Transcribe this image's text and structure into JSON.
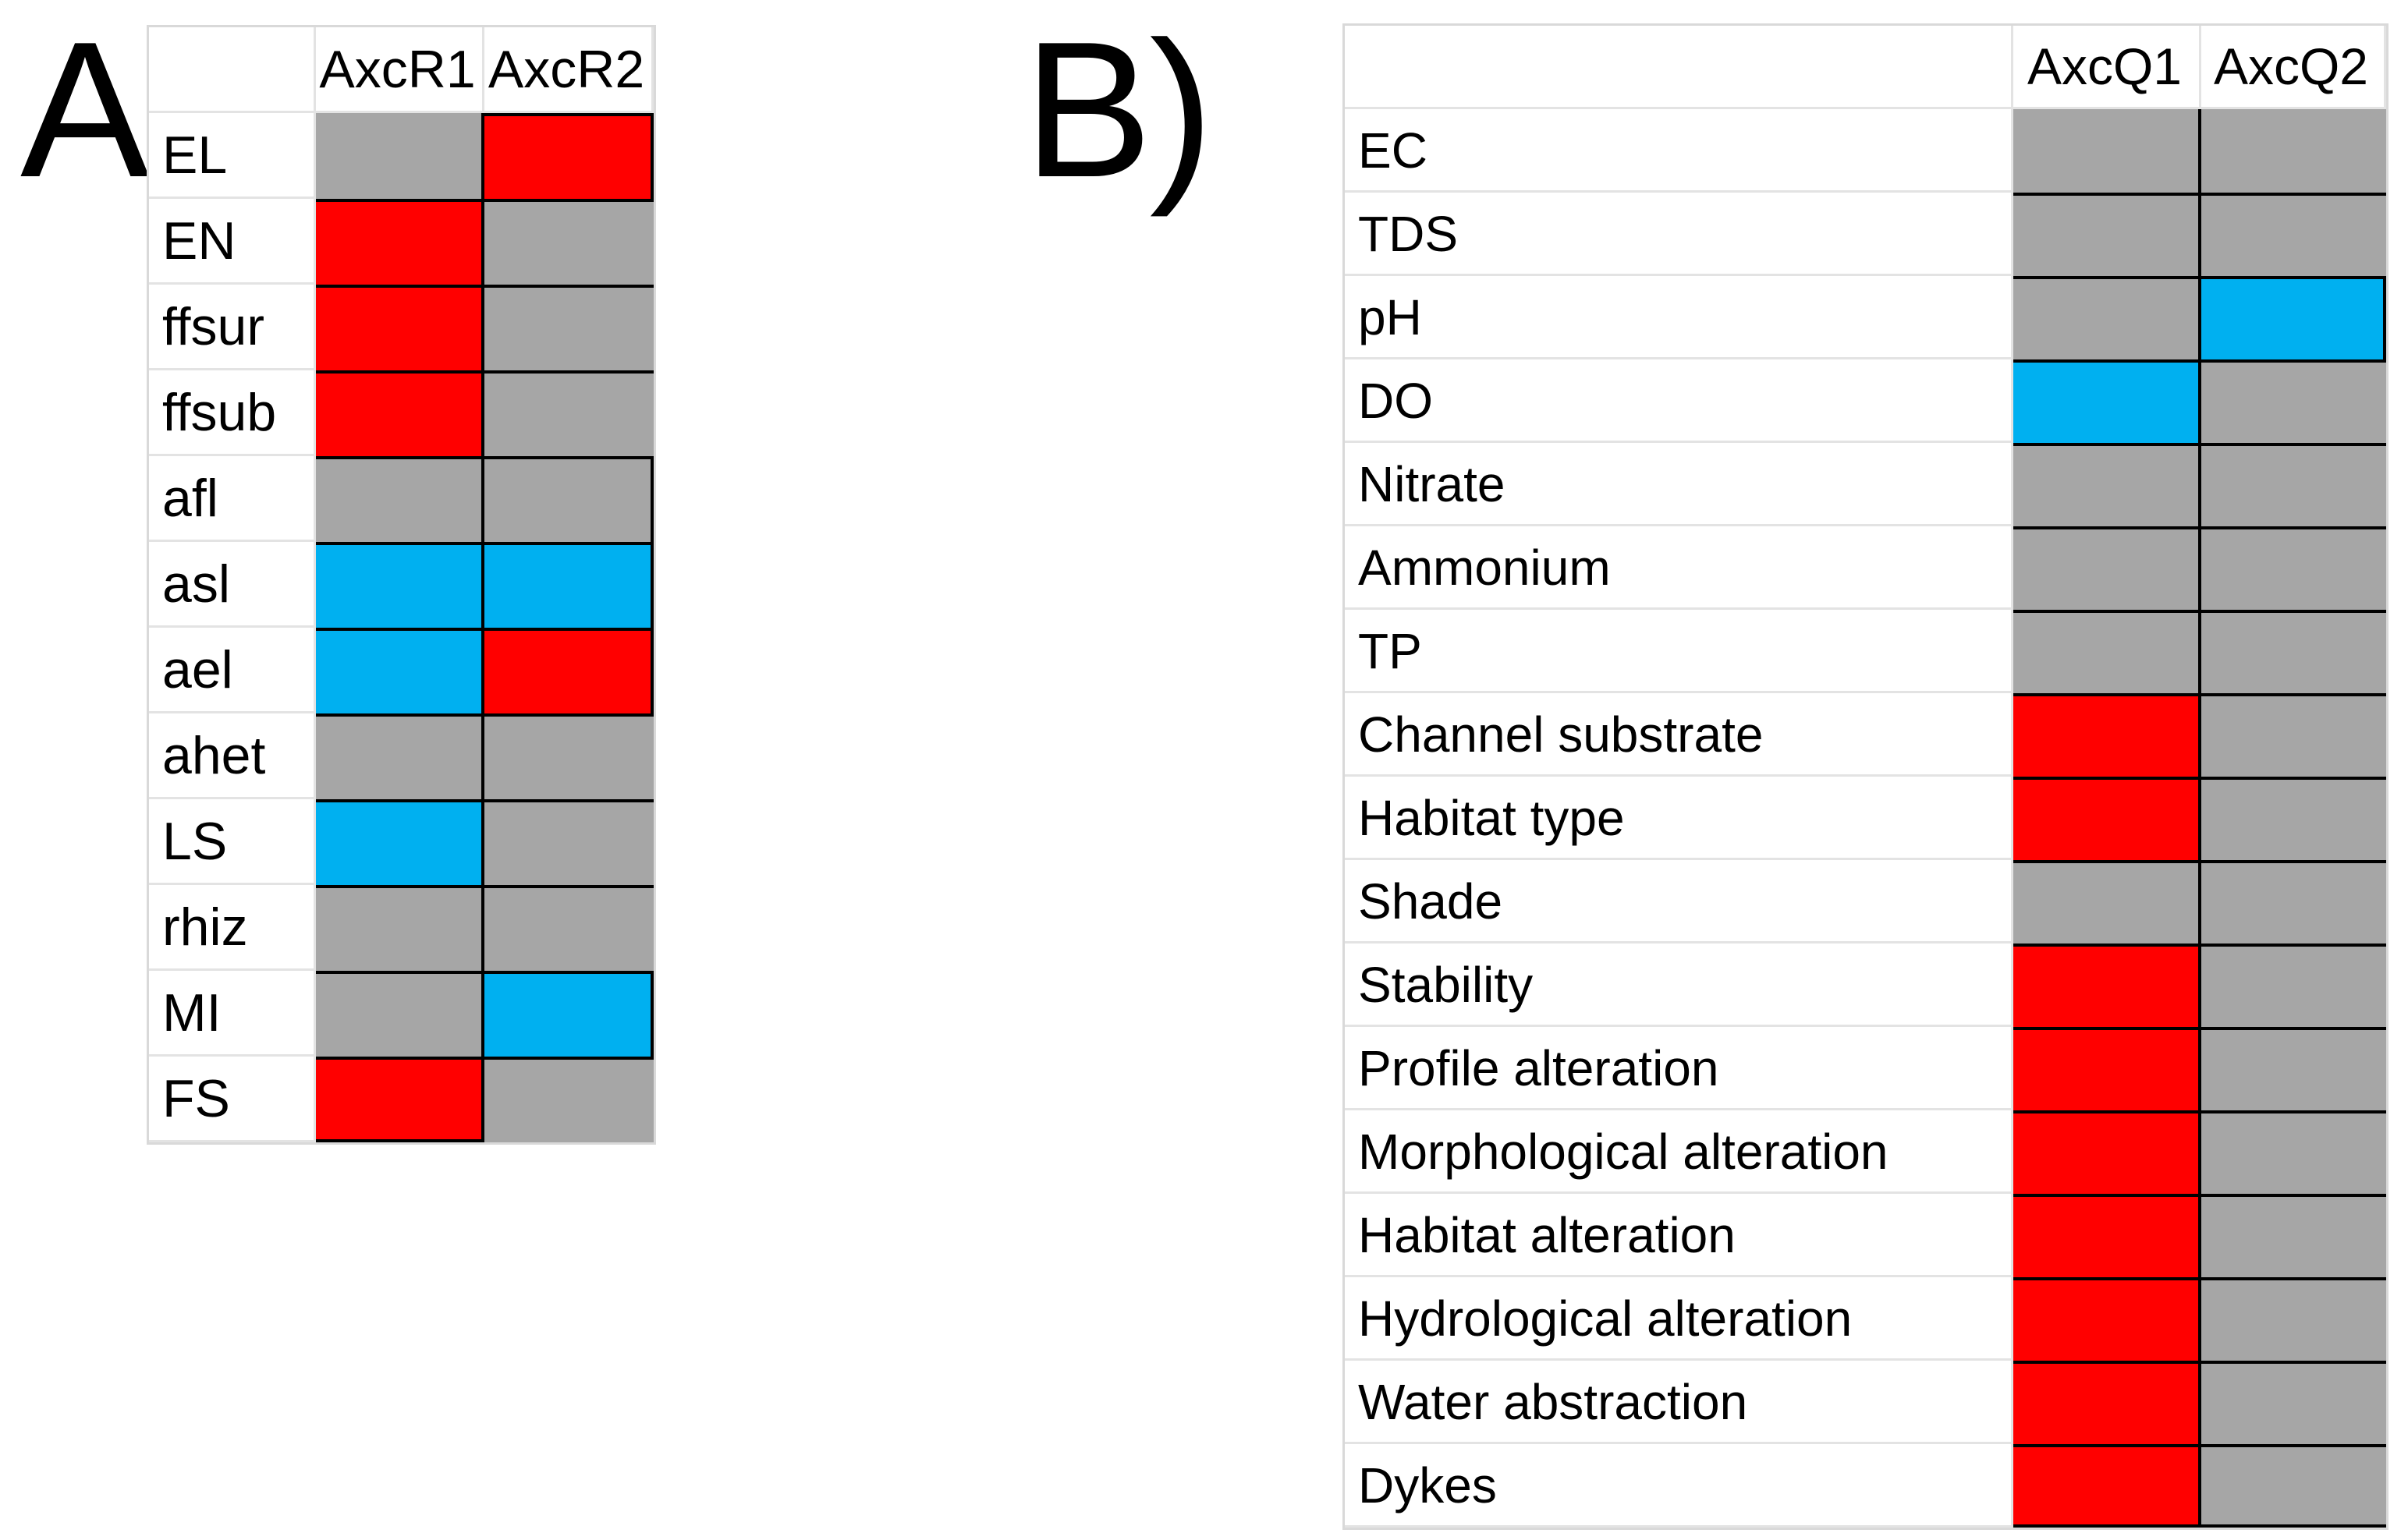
{
  "figure": {
    "panels": [
      {
        "id": "A",
        "label": "A)",
        "columns": [
          "AxcR1",
          "AxcR2"
        ],
        "rows": [
          {
            "label": "EL",
            "cells": [
              "gray",
              "red"
            ]
          },
          {
            "label": "EN",
            "cells": [
              "red",
              "gray"
            ]
          },
          {
            "label": "ffsur",
            "cells": [
              "red",
              "gray"
            ]
          },
          {
            "label": "ffsub",
            "cells": [
              "red",
              "gray"
            ]
          },
          {
            "label": "afl",
            "cells": [
              "gray",
              "gray"
            ]
          },
          {
            "label": "asl",
            "cells": [
              "blue",
              "blue"
            ]
          },
          {
            "label": "ael",
            "cells": [
              "blue",
              "red"
            ]
          },
          {
            "label": "ahet",
            "cells": [
              "gray",
              "gray"
            ]
          },
          {
            "label": "LS",
            "cells": [
              "blue",
              "gray"
            ]
          },
          {
            "label": "rhiz",
            "cells": [
              "gray",
              "gray"
            ]
          },
          {
            "label": "MI",
            "cells": [
              "gray",
              "blue"
            ]
          },
          {
            "label": "FS",
            "cells": [
              "red",
              "gray"
            ]
          }
        ],
        "outlines": {
          "top_black_columns": [
            "AxcR2"
          ],
          "right_black_rows": [
            "EL",
            "afl",
            "asl",
            "ael",
            "MI"
          ],
          "bottom_black_columns": [
            "AxcR1"
          ]
        }
      },
      {
        "id": "B",
        "label": "B)",
        "columns": [
          "AxcQ1",
          "AxcQ2"
        ],
        "rows": [
          {
            "label": "EC",
            "cells": [
              "gray",
              "gray"
            ]
          },
          {
            "label": "TDS",
            "cells": [
              "gray",
              "gray"
            ]
          },
          {
            "label": "pH",
            "cells": [
              "gray",
              "blue"
            ]
          },
          {
            "label": "DO",
            "cells": [
              "blue",
              "gray"
            ]
          },
          {
            "label": "Nitrate",
            "cells": [
              "gray",
              "gray"
            ]
          },
          {
            "label": "Ammonium",
            "cells": [
              "gray",
              "gray"
            ]
          },
          {
            "label": "TP",
            "cells": [
              "gray",
              "gray"
            ]
          },
          {
            "label": "Channel substrate",
            "cells": [
              "red",
              "gray"
            ]
          },
          {
            "label": "Habitat type",
            "cells": [
              "red",
              "gray"
            ]
          },
          {
            "label": "Shade",
            "cells": [
              "gray",
              "gray"
            ]
          },
          {
            "label": "Stability",
            "cells": [
              "red",
              "gray"
            ]
          },
          {
            "label": "Profile alteration",
            "cells": [
              "red",
              "gray"
            ]
          },
          {
            "label": "Morphological alteration",
            "cells": [
              "red",
              "gray"
            ]
          },
          {
            "label": "Habitat alteration",
            "cells": [
              "red",
              "gray"
            ]
          },
          {
            "label": "Hydrological alteration",
            "cells": [
              "red",
              "gray"
            ]
          },
          {
            "label": "Water abstraction",
            "cells": [
              "red",
              "gray"
            ]
          },
          {
            "label": "Dykes",
            "cells": [
              "red",
              "gray"
            ]
          }
        ],
        "outlines": {
          "top_black_columns": [],
          "right_black_rows": [
            "pH"
          ],
          "bottom_black_columns": [
            "AxcQ1",
            "AxcQ2"
          ]
        }
      }
    ]
  },
  "colors": {
    "red": "#FF0000",
    "blue": "#00B0F0",
    "gray": "#A6A6A6",
    "grid_light": "#E3E3E3",
    "border_black": "#000000"
  },
  "chart_data": [
    {
      "type": "heatmap",
      "title": "A",
      "columns": [
        "AxcR1",
        "AxcR2"
      ],
      "rows": [
        "EL",
        "EN",
        "ffsur",
        "ffsub",
        "afl",
        "asl",
        "ael",
        "ahet",
        "LS",
        "rhiz",
        "MI",
        "FS"
      ],
      "values": [
        [
          "gray",
          "red"
        ],
        [
          "red",
          "gray"
        ],
        [
          "red",
          "gray"
        ],
        [
          "red",
          "gray"
        ],
        [
          "gray",
          "gray"
        ],
        [
          "blue",
          "blue"
        ],
        [
          "blue",
          "red"
        ],
        [
          "gray",
          "gray"
        ],
        [
          "blue",
          "gray"
        ],
        [
          "gray",
          "gray"
        ],
        [
          "gray",
          "blue"
        ],
        [
          "red",
          "gray"
        ]
      ],
      "cell_color_hex": {
        "red": "#FF0000",
        "blue": "#00B0F0",
        "gray": "#A6A6A6"
      },
      "legend_position": "none",
      "grid": true
    },
    {
      "type": "heatmap",
      "title": "B",
      "columns": [
        "AxcQ1",
        "AxcQ2"
      ],
      "rows": [
        "EC",
        "TDS",
        "pH",
        "DO",
        "Nitrate",
        "Ammonium",
        "TP",
        "Channel substrate",
        "Habitat type",
        "Shade",
        "Stability",
        "Profile alteration",
        "Morphological alteration",
        "Habitat alteration",
        "Hydrological alteration",
        "Water abstraction",
        "Dykes"
      ],
      "values": [
        [
          "gray",
          "gray"
        ],
        [
          "gray",
          "gray"
        ],
        [
          "gray",
          "blue"
        ],
        [
          "blue",
          "gray"
        ],
        [
          "gray",
          "gray"
        ],
        [
          "gray",
          "gray"
        ],
        [
          "gray",
          "gray"
        ],
        [
          "red",
          "gray"
        ],
        [
          "red",
          "gray"
        ],
        [
          "gray",
          "gray"
        ],
        [
          "red",
          "gray"
        ],
        [
          "red",
          "gray"
        ],
        [
          "red",
          "gray"
        ],
        [
          "red",
          "gray"
        ],
        [
          "red",
          "gray"
        ],
        [
          "red",
          "gray"
        ],
        [
          "red",
          "gray"
        ]
      ],
      "cell_color_hex": {
        "red": "#FF0000",
        "blue": "#00B0F0",
        "gray": "#A6A6A6"
      },
      "legend_position": "none",
      "grid": true
    }
  ]
}
